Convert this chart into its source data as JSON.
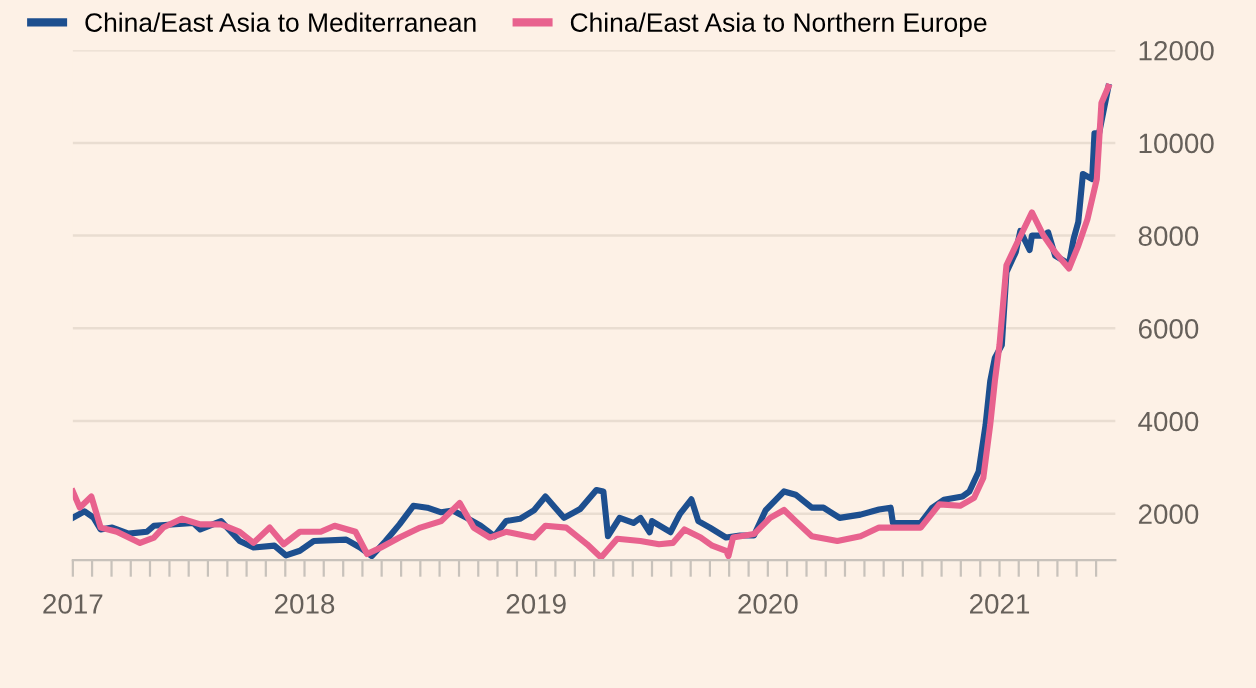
{
  "chart_data": {
    "type": "line",
    "legend": "top left",
    "grid": "y",
    "line_style": "solid",
    "marker": "none",
    "xlim": [
      2017,
      2021.5
    ],
    "ylim": [
      1000,
      12000
    ],
    "yticks": [
      2000,
      4000,
      6000,
      8000,
      10000,
      12000
    ],
    "xticks": [
      2017,
      {
        "value": 2017.083,
        "label": null
      },
      {
        "value": 2017.167,
        "label": null
      },
      {
        "value": 2017.25,
        "label": null
      },
      {
        "value": 2017.333,
        "label": null
      },
      {
        "value": 2017.417,
        "label": null
      },
      {
        "value": 2017.5,
        "label": null
      },
      {
        "value": 2017.583,
        "label": null
      },
      {
        "value": 2017.667,
        "label": null
      },
      {
        "value": 2017.75,
        "label": null
      },
      {
        "value": 2017.833,
        "label": null
      },
      {
        "value": 2017.917,
        "label": null
      },
      2018,
      {
        "value": 2018.083,
        "label": null
      },
      {
        "value": 2018.167,
        "label": null
      },
      {
        "value": 2018.25,
        "label": null
      },
      {
        "value": 2018.333,
        "label": null
      },
      {
        "value": 2018.417,
        "label": null
      },
      {
        "value": 2018.5,
        "label": null
      },
      {
        "value": 2018.583,
        "label": null
      },
      {
        "value": 2018.667,
        "label": null
      },
      {
        "value": 2018.75,
        "label": null
      },
      {
        "value": 2018.833,
        "label": null
      },
      {
        "value": 2018.917,
        "label": null
      },
      2019,
      {
        "value": 2019.083,
        "label": null
      },
      {
        "value": 2019.167,
        "label": null
      },
      {
        "value": 2019.25,
        "label": null
      },
      {
        "value": 2019.333,
        "label": null
      },
      {
        "value": 2019.417,
        "label": null
      },
      {
        "value": 2019.5,
        "label": null
      },
      {
        "value": 2019.583,
        "label": null
      },
      {
        "value": 2019.667,
        "label": null
      },
      {
        "value": 2019.75,
        "label": null
      },
      {
        "value": 2019.833,
        "label": null
      },
      {
        "value": 2019.917,
        "label": null
      },
      2020,
      {
        "value": 2020.083,
        "label": null
      },
      {
        "value": 2020.167,
        "label": null
      },
      {
        "value": 2020.25,
        "label": null
      },
      {
        "value": 2020.333,
        "label": null
      },
      {
        "value": 2020.417,
        "label": null
      },
      {
        "value": 2020.5,
        "label": null
      },
      {
        "value": 2020.583,
        "label": null
      },
      {
        "value": 2020.667,
        "label": null
      },
      {
        "value": 2020.75,
        "label": null
      },
      {
        "value": 2020.833,
        "label": null
      },
      {
        "value": 2020.917,
        "label": null
      },
      2021,
      {
        "value": 2021.083,
        "label": null
      },
      {
        "value": 2021.167,
        "label": null
      },
      {
        "value": 2021.25,
        "label": null
      },
      {
        "value": 2021.333,
        "label": null
      },
      {
        "value": 2021.417,
        "label": null
      }
    ],
    "series": [
      {
        "name": "China/East Asia to Mediterranean",
        "color": "#1d4f8f",
        "x": [
          2017.0,
          2017.05,
          2017.09,
          2017.12,
          2017.17,
          2017.24,
          2017.32,
          2017.35,
          2017.52,
          2017.55,
          2017.64,
          2017.72,
          2017.78,
          2017.87,
          2017.92,
          2017.98,
          2018.04,
          2018.18,
          2018.24,
          2018.29,
          2018.35,
          2018.41,
          2018.47,
          2018.53,
          2018.59,
          2018.64,
          2018.7,
          2018.76,
          2018.82,
          2018.87,
          2018.93,
          2018.99,
          2019.04,
          2019.12,
          2019.19,
          2019.26,
          2019.29,
          2019.31,
          2019.36,
          2019.42,
          2019.45,
          2019.49,
          2019.5,
          2019.58,
          2019.62,
          2019.67,
          2019.7,
          2019.75,
          2019.82,
          2019.88,
          2019.94,
          2019.99,
          2020.07,
          2020.12,
          2020.19,
          2020.24,
          2020.31,
          2020.4,
          2020.48,
          2020.53,
          2020.54,
          2020.66,
          2020.71,
          2020.76,
          2020.84,
          2020.87,
          2020.91,
          2020.94,
          2020.96,
          2020.98,
          2021.01,
          2021.03,
          2021.07,
          2021.09,
          2021.13,
          2021.14,
          2021.19,
          2021.21,
          2021.24,
          2021.3,
          2021.32,
          2021.34,
          2021.36,
          2021.4,
          2021.41,
          2021.43,
          2021.47
        ],
        "values": [
          1910,
          2050,
          1910,
          1660,
          1700,
          1570,
          1610,
          1740,
          1800,
          1660,
          1840,
          1410,
          1270,
          1310,
          1100,
          1200,
          1410,
          1440,
          1270,
          1085,
          1410,
          1770,
          2170,
          2130,
          2030,
          2070,
          1910,
          1740,
          1515,
          1840,
          1890,
          2070,
          2370,
          1910,
          2100,
          2510,
          2480,
          1515,
          1910,
          1800,
          1910,
          1600,
          1840,
          1600,
          1990,
          2310,
          1840,
          1700,
          1485,
          1530,
          1530,
          2070,
          2480,
          2410,
          2130,
          2130,
          1910,
          1980,
          2090,
          2130,
          1800,
          1800,
          2130,
          2300,
          2370,
          2480,
          2910,
          3920,
          4860,
          5360,
          5640,
          7210,
          7640,
          8100,
          7690,
          8000,
          8000,
          8070,
          7570,
          7390,
          7930,
          8290,
          9330,
          9220,
          10210,
          10210,
          11210
        ]
      },
      {
        "name": "China/East Asia to Northern Europe",
        "color": "#e8628e",
        "x": [
          2017.0,
          2017.03,
          2017.08,
          2017.12,
          2017.19,
          2017.29,
          2017.35,
          2017.39,
          2017.47,
          2017.55,
          2017.64,
          2017.72,
          2017.78,
          2017.85,
          2017.91,
          2017.98,
          2018.07,
          2018.13,
          2018.22,
          2018.27,
          2018.33,
          2018.41,
          2018.5,
          2018.59,
          2018.67,
          2018.73,
          2018.8,
          2018.87,
          2018.99,
          2019.04,
          2019.13,
          2019.22,
          2019.28,
          2019.35,
          2019.45,
          2019.53,
          2019.59,
          2019.64,
          2019.71,
          2019.76,
          2019.82,
          2019.83,
          2019.85,
          2019.94,
          2020.01,
          2020.07,
          2020.12,
          2020.19,
          2020.3,
          2020.4,
          2020.48,
          2020.54,
          2020.66,
          2020.74,
          2020.83,
          2020.89,
          2020.93,
          2020.96,
          2020.98,
          2021.0,
          2021.03,
          2021.07,
          2021.14,
          2021.19,
          2021.24,
          2021.3,
          2021.34,
          2021.38,
          2021.42,
          2021.44,
          2021.47
        ],
        "values": [
          2480,
          2130,
          2370,
          1700,
          1610,
          1370,
          1485,
          1700,
          1890,
          1770,
          1770,
          1610,
          1370,
          1700,
          1340,
          1610,
          1610,
          1740,
          1610,
          1130,
          1270,
          1485,
          1700,
          1840,
          2230,
          1700,
          1485,
          1610,
          1485,
          1740,
          1700,
          1340,
          1055,
          1460,
          1410,
          1340,
          1370,
          1660,
          1485,
          1310,
          1200,
          1085,
          1485,
          1560,
          1910,
          2080,
          1840,
          1515,
          1410,
          1515,
          1700,
          1700,
          1700,
          2200,
          2170,
          2340,
          2770,
          3920,
          4860,
          5640,
          7360,
          7780,
          8500,
          8000,
          7640,
          7290,
          7780,
          8360,
          9220,
          10860,
          11210
        ]
      }
    ]
  }
}
